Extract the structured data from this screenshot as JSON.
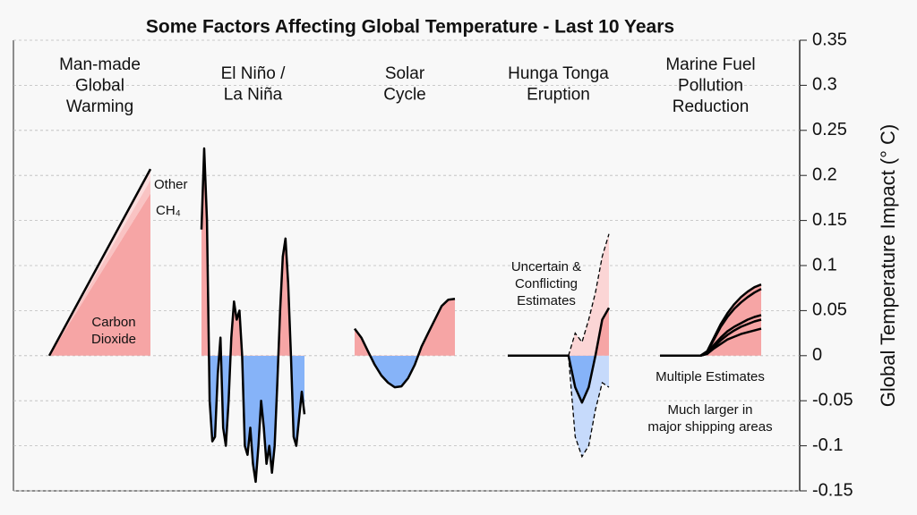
{
  "chart_data": {
    "type": "area",
    "title": "Some Factors Affecting Global Temperature - Last 10 Years",
    "ylabel": "Global Temperature Impact (° C)",
    "ylim": [
      -0.15,
      0.35
    ],
    "yticks": [
      -0.15,
      -0.1,
      -0.05,
      0,
      0.05,
      0.1,
      0.15,
      0.2,
      0.25,
      0.3,
      0.35
    ],
    "grid": true,
    "positive_color": "#f6a5a5",
    "negative_color": "#86b3f8",
    "line_color": "#000000",
    "panels": [
      {
        "label_lines": [
          "Man-made",
          "Global",
          "Warming"
        ],
        "stacked": true,
        "series": [
          {
            "name": "Carbon Dioxide",
            "color": "#f6a5a5",
            "values": [
              0,
              0.18
            ]
          },
          {
            "name": "CH₄",
            "color": "#f9c3c3",
            "values": [
              0,
              0.015
            ]
          },
          {
            "name": "Other",
            "color": "#fbdcdc",
            "values": [
              0,
              0.012
            ]
          }
        ]
      },
      {
        "label_lines": [
          "El Niño /",
          "La Niña"
        ],
        "series": [
          {
            "values": [
              0.14,
              0.23,
              0.15,
              -0.05,
              -0.095,
              -0.09,
              -0.02,
              0.02,
              -0.08,
              -0.1,
              -0.05,
              0.02,
              0.06,
              0.04,
              0.05,
              0.0,
              -0.1,
              -0.11,
              -0.08,
              -0.12,
              -0.14,
              -0.1,
              -0.05,
              -0.08,
              -0.12,
              -0.1,
              -0.13,
              -0.1,
              -0.03,
              0.05,
              0.11,
              0.13,
              0.08,
              0.0,
              -0.09,
              -0.1,
              -0.07,
              -0.04,
              -0.065
            ]
          }
        ]
      },
      {
        "label_lines": [
          "Solar",
          "Cycle"
        ],
        "series": [
          {
            "values": [
              0.03,
              0.02,
              0.005,
              -0.01,
              -0.022,
              -0.03,
              -0.035,
              -0.034,
              -0.025,
              -0.01,
              0.01,
              0.025,
              0.04,
              0.055,
              0.062,
              0.063
            ]
          }
        ]
      },
      {
        "label_lines": [
          "Hunga Tonga",
          "Eruption"
        ],
        "annotations": [
          "Uncertain &",
          "Conflicting",
          "Estimates"
        ],
        "upper_color": "#fbd5d5",
        "lower_color": "#c6dafb",
        "upper": [
          null,
          null,
          null,
          null,
          null,
          null,
          null,
          null,
          null,
          0,
          0.025,
          0.015,
          0.04,
          0.07,
          0.11,
          0.135
        ],
        "lower": [
          null,
          null,
          null,
          null,
          null,
          null,
          null,
          null,
          null,
          0,
          -0.09,
          -0.112,
          -0.1,
          -0.06,
          -0.03,
          -0.035
        ],
        "series": [
          {
            "values": [
              0,
              0,
              0,
              0,
              0,
              0,
              0,
              0,
              0,
              0,
              -0.035,
              -0.052,
              -0.035,
              0.0,
              0.04,
              0.053
            ]
          }
        ]
      },
      {
        "label_lines": [
          "Marine Fuel",
          "Pollution",
          "Reduction"
        ],
        "annotations": [
          "Multiple Estimates",
          "Much larger in",
          "major shipping areas"
        ],
        "series": [
          {
            "values": [
              0,
              0,
              0,
              0,
              0,
              0,
              0,
              0.005,
              0.02,
              0.035,
              0.047,
              0.057,
              0.065,
              0.071,
              0.076,
              0.079
            ]
          },
          {
            "values": [
              0,
              0,
              0,
              0,
              0,
              0,
              0,
              0.004,
              0.018,
              0.032,
              0.043,
              0.052,
              0.059,
              0.065,
              0.07,
              0.074
            ]
          },
          {
            "values": [
              0,
              0,
              0,
              0,
              0,
              0,
              0,
              0.003,
              0.012,
              0.02,
              0.027,
              0.032,
              0.036,
              0.04,
              0.043,
              0.045
            ]
          },
          {
            "values": [
              0,
              0,
              0,
              0,
              0,
              0,
              0,
              0.002,
              0.01,
              0.017,
              0.023,
              0.028,
              0.032,
              0.035,
              0.038,
              0.04
            ]
          },
          {
            "values": [
              0,
              0,
              0,
              0,
              0,
              0,
              0,
              0.002,
              0.008,
              0.013,
              0.018,
              0.021,
              0.024,
              0.026,
              0.028,
              0.03
            ]
          }
        ]
      }
    ]
  }
}
